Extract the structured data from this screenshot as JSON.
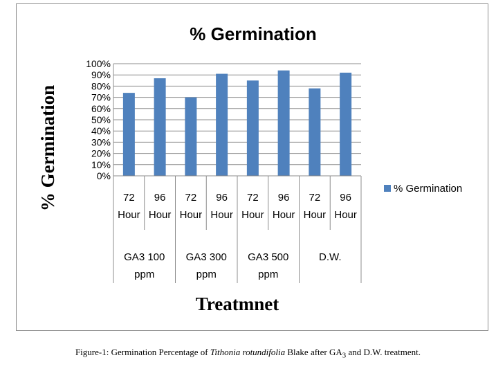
{
  "chart_data": {
    "type": "bar",
    "title": "% Germination",
    "ylabel": "% Germination",
    "xlabel": "Treatmnet",
    "ylim": [
      0,
      100
    ],
    "yticks": [
      0,
      10,
      20,
      30,
      40,
      50,
      60,
      70,
      80,
      90,
      100
    ],
    "ytick_suffix": "%",
    "legend_position": "right",
    "gridlines": true,
    "categories": [
      {
        "top": "72",
        "bottom": "Hour"
      },
      {
        "top": "96",
        "bottom": "Hour"
      },
      {
        "top": "72",
        "bottom": "Hour"
      },
      {
        "top": "96",
        "bottom": "Hour"
      },
      {
        "top": "72",
        "bottom": "Hour"
      },
      {
        "top": "96",
        "bottom": "Hour"
      },
      {
        "top": "72",
        "bottom": "Hour"
      },
      {
        "top": "96",
        "bottom": "Hour"
      }
    ],
    "groups": [
      {
        "line1": "GA3 100",
        "line2": "ppm"
      },
      {
        "line1": "GA3 300",
        "line2": "ppm"
      },
      {
        "line1": "GA3 500",
        "line2": "ppm"
      },
      {
        "line1": "D.W.",
        "line2": ""
      }
    ],
    "series": [
      {
        "name": "% Germination",
        "color": "#4f81bd",
        "values": [
          74,
          87,
          70,
          91,
          85,
          94,
          78,
          92
        ]
      }
    ]
  },
  "caption": {
    "prefix": "Figure-1: Germination Percentage of ",
    "species": "Tithonia rotundifolia",
    "middle": " Blake after GA",
    "subscript": "3",
    "suffix": " and D.W. treatment."
  }
}
